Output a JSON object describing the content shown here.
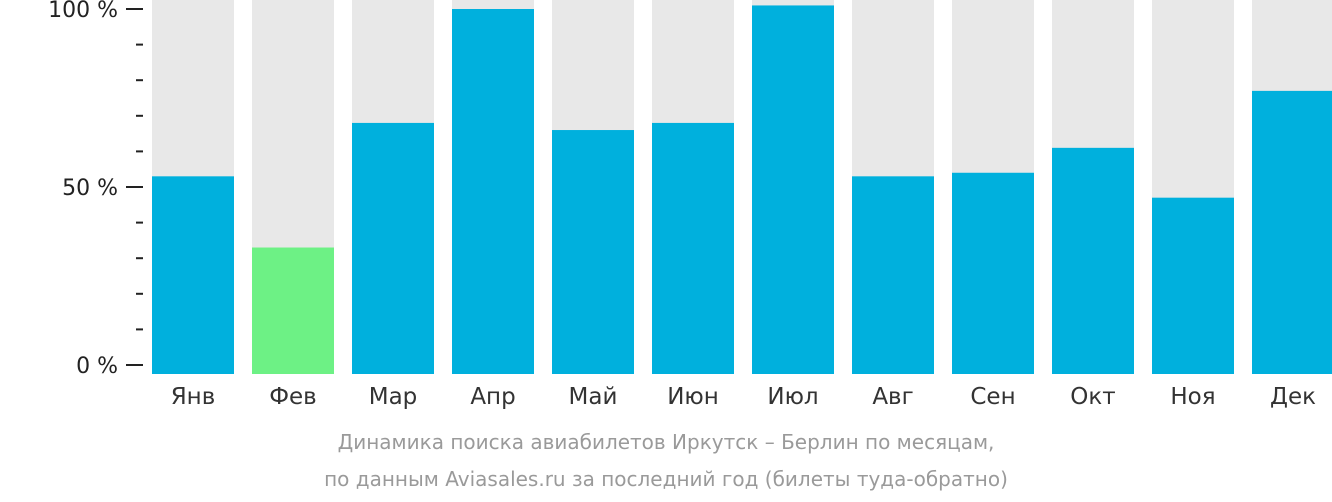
{
  "chart_data": {
    "type": "bar",
    "categories": [
      "Янв",
      "Фев",
      "Мар",
      "Апр",
      "Май",
      "Июн",
      "Июл",
      "Авг",
      "Сен",
      "Окт",
      "Ноя",
      "Дек"
    ],
    "values": [
      53,
      33,
      68,
      100,
      66,
      68,
      101,
      53,
      54,
      61,
      47,
      77
    ],
    "highlight_index": 1,
    "ylim": [
      0,
      100
    ],
    "yticks": [
      {
        "value": 0,
        "label": "0 %"
      },
      {
        "value": 50,
        "label": "50 %"
      },
      {
        "value": 100,
        "label": "100 %"
      }
    ],
    "minor_tick_step": 10,
    "title": "",
    "xlabel": "",
    "ylabel": "",
    "colors": {
      "bar": "#00b0dd",
      "highlight": "#6df185",
      "background_bar": "#e8e8e8",
      "axis": "#222222"
    }
  },
  "caption": {
    "line1": "Динамика поиска авиабилетов Иркутск – Берлин по месяцам,",
    "line2": "по данным Aviasales.ru за последний год (билеты туда-обратно)"
  }
}
